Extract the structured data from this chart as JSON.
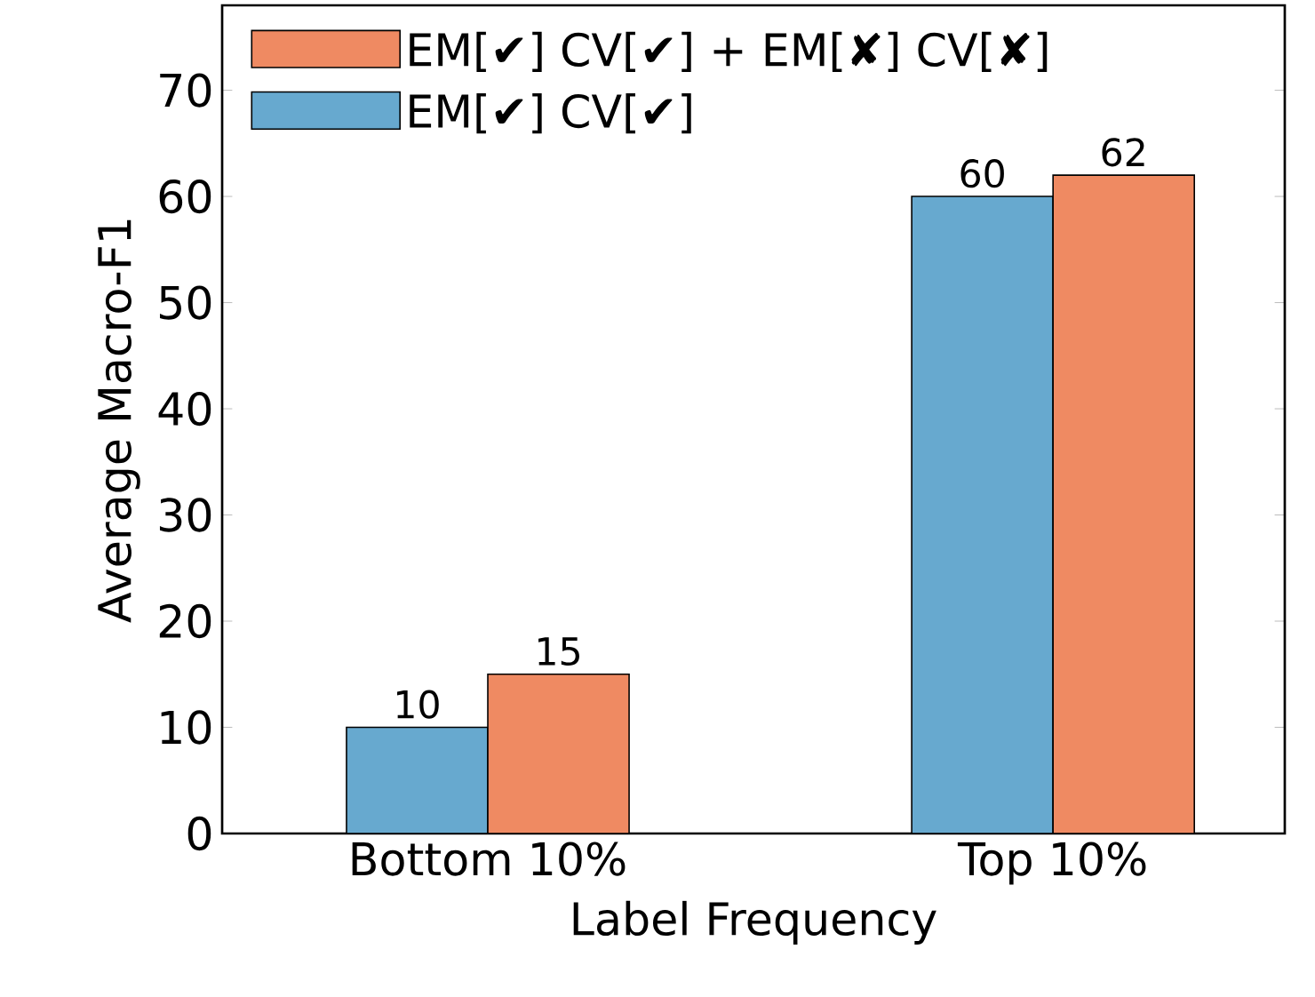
{
  "chart_data": {
    "type": "bar",
    "xlabel": "Label Frequency",
    "ylabel": "Average Macro-F1",
    "categories": [
      "Bottom 10%",
      "Top 10%"
    ],
    "series": [
      {
        "name": "EM[✔] CV[✔]",
        "color": "#67a9cf",
        "values": [
          10,
          60
        ]
      },
      {
        "name": "EM[✔] CV[✔] + EM[✘] CV[✘]",
        "color": "#ef8a62",
        "values": [
          15,
          62
        ]
      }
    ],
    "ylim": [
      0,
      78
    ],
    "yticks": [
      0,
      10,
      20,
      30,
      40,
      50,
      60,
      70
    ],
    "data_labels": true,
    "legend": "top left",
    "grid": false
  }
}
